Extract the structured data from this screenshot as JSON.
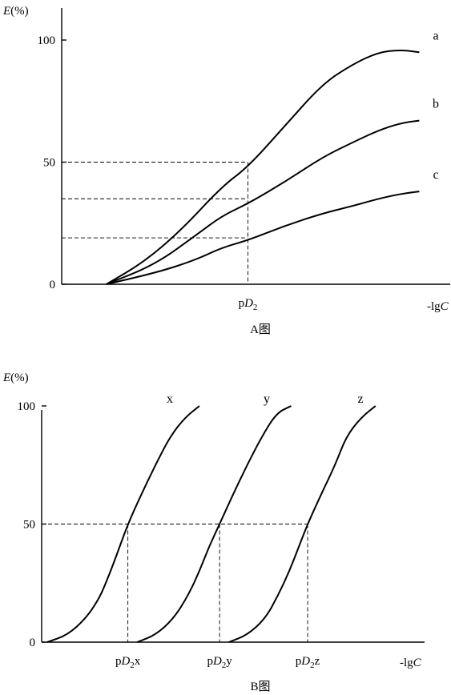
{
  "chart_data": [
    {
      "id": "A",
      "type": "line",
      "caption": "A图",
      "ylabel": "E(%)",
      "xlabel": "-lgC",
      "ylim": [
        0,
        100
      ],
      "yticks": [
        0,
        50,
        100
      ],
      "xlim": [
        0,
        10
      ],
      "xticks": [
        {
          "label_prefix": "p",
          "label_italic": "D",
          "label_sub": "2",
          "label_suffix": "",
          "x": 5.0
        }
      ],
      "reference_value": {
        "x": 5.0,
        "label": "pD2"
      },
      "series": [
        {
          "name": "a",
          "points": [
            [
              1.2,
              0
            ],
            [
              2.2,
              9
            ],
            [
              3.2,
              22
            ],
            [
              4.3,
              40
            ],
            [
              5.0,
              48
            ],
            [
              6.0,
              65
            ],
            [
              7.0,
              82
            ],
            [
              7.8,
              90
            ],
            [
              8.5,
              95
            ],
            [
              9.1,
              96
            ],
            [
              9.6,
              95
            ]
          ]
        },
        {
          "name": "b",
          "points": [
            [
              1.2,
              0
            ],
            [
              2.5,
              8
            ],
            [
              3.6,
              20
            ],
            [
              4.3,
              28
            ],
            [
              5.0,
              33
            ],
            [
              6.0,
              42
            ],
            [
              7.0,
              52
            ],
            [
              7.8,
              58
            ],
            [
              8.5,
              63
            ],
            [
              9.1,
              66
            ],
            [
              9.6,
              67
            ]
          ]
        },
        {
          "name": "c",
          "points": [
            [
              1.2,
              0
            ],
            [
              2.6,
              5
            ],
            [
              3.6,
              10
            ],
            [
              4.3,
              15
            ],
            [
              5.0,
              18
            ],
            [
              6.0,
              24
            ],
            [
              7.0,
              29
            ],
            [
              7.8,
              32
            ],
            [
              8.5,
              35
            ],
            [
              9.1,
              37
            ],
            [
              9.6,
              38
            ]
          ]
        }
      ],
      "dashed_guides": [
        {
          "y": 50,
          "to_series": "a"
        },
        {
          "y": 35,
          "to_series": "b"
        },
        {
          "y": 19,
          "to_series": "c"
        }
      ]
    },
    {
      "id": "B",
      "type": "line",
      "caption": "B图",
      "ylabel": "E(%)",
      "xlabel": "-lgC",
      "ylim": [
        0,
        100
      ],
      "yticks": [
        0,
        50,
        100
      ],
      "xlim": [
        0,
        10
      ],
      "xticks": [
        {
          "label_prefix": "p",
          "label_italic": "D",
          "label_sub": "2",
          "label_suffix": "x",
          "x": 2.35
        },
        {
          "label_prefix": "p",
          "label_italic": "D",
          "label_sub": "2",
          "label_suffix": "y",
          "x": 4.85
        },
        {
          "label_prefix": "p",
          "label_italic": "D",
          "label_sub": "2",
          "label_suffix": "z",
          "x": 7.25
        }
      ],
      "series": [
        {
          "name": "x",
          "points": [
            [
              0.15,
              0
            ],
            [
              0.7,
              3
            ],
            [
              1.2,
              10
            ],
            [
              1.55,
              18
            ],
            [
              1.75,
              25
            ],
            [
              2.0,
              35
            ],
            [
              2.35,
              50
            ],
            [
              2.7,
              62
            ],
            [
              3.1,
              75
            ],
            [
              3.5,
              87
            ],
            [
              3.9,
              95
            ],
            [
              4.3,
              100
            ]
          ]
        },
        {
          "name": "y",
          "points": [
            [
              2.6,
              0
            ],
            [
              3.1,
              3
            ],
            [
              3.6,
              10
            ],
            [
              4.0,
              20
            ],
            [
              4.3,
              30
            ],
            [
              4.55,
              40
            ],
            [
              4.85,
              50
            ],
            [
              5.2,
              62
            ],
            [
              5.6,
              75
            ],
            [
              6.0,
              87
            ],
            [
              6.4,
              97
            ],
            [
              6.8,
              100
            ]
          ]
        },
        {
          "name": "z",
          "points": [
            [
              5.1,
              0
            ],
            [
              5.6,
              3
            ],
            [
              6.1,
              10
            ],
            [
              6.45,
              20
            ],
            [
              6.75,
              30
            ],
            [
              7.0,
              40
            ],
            [
              7.25,
              50
            ],
            [
              7.6,
              62
            ],
            [
              8.0,
              75
            ],
            [
              8.3,
              87
            ],
            [
              8.7,
              95
            ],
            [
              9.1,
              100
            ]
          ]
        }
      ],
      "dashed_guides": [
        {
          "y": 50,
          "to_series": "z"
        }
      ]
    }
  ]
}
